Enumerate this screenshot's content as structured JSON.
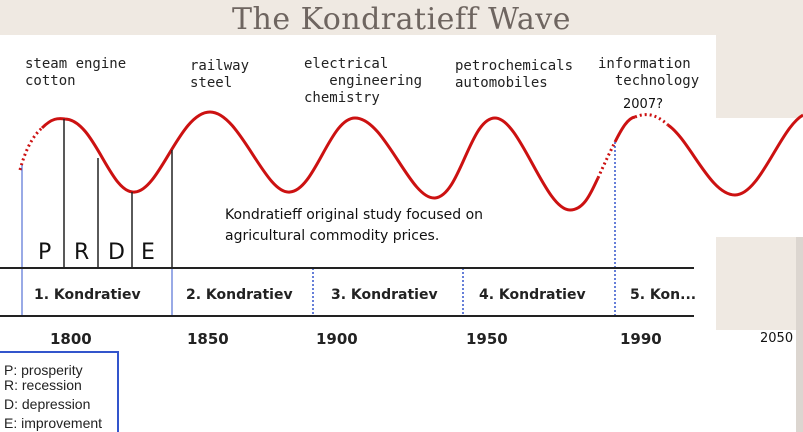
{
  "title": "The Kondratieff Wave",
  "technologies": [
    {
      "lines": [
        "steam engine",
        "cotton"
      ]
    },
    {
      "lines": [
        "railway",
        "steel"
      ]
    },
    {
      "lines": [
        "electrical",
        "   engineering",
        "chemistry"
      ]
    },
    {
      "lines": [
        "petrochemicals",
        "automobiles"
      ]
    },
    {
      "lines": [
        "information",
        "  technology"
      ]
    }
  ],
  "phases": [
    "P",
    "R",
    "D",
    "E"
  ],
  "waves": [
    "1. Kondratiev",
    "2. Kondratiev",
    "3. Kondratiev",
    "4. Kondratiev",
    "5. Kon..."
  ],
  "years": [
    "1800",
    "1850",
    "1900",
    "1950",
    "1990"
  ],
  "note": "Kondratieff original study focused on agricultural commodity prices.",
  "peak_label": "2007?",
  "year_2050": "2050",
  "legend": [
    "P: prosperity",
    "R: recession",
    "D: depression",
    "E: improvement"
  ],
  "colors": {
    "wave": "#cc1111",
    "axis": "#222222",
    "vline": "#3355cc",
    "panel": "#ffffff",
    "background": "#efe9e2"
  }
}
